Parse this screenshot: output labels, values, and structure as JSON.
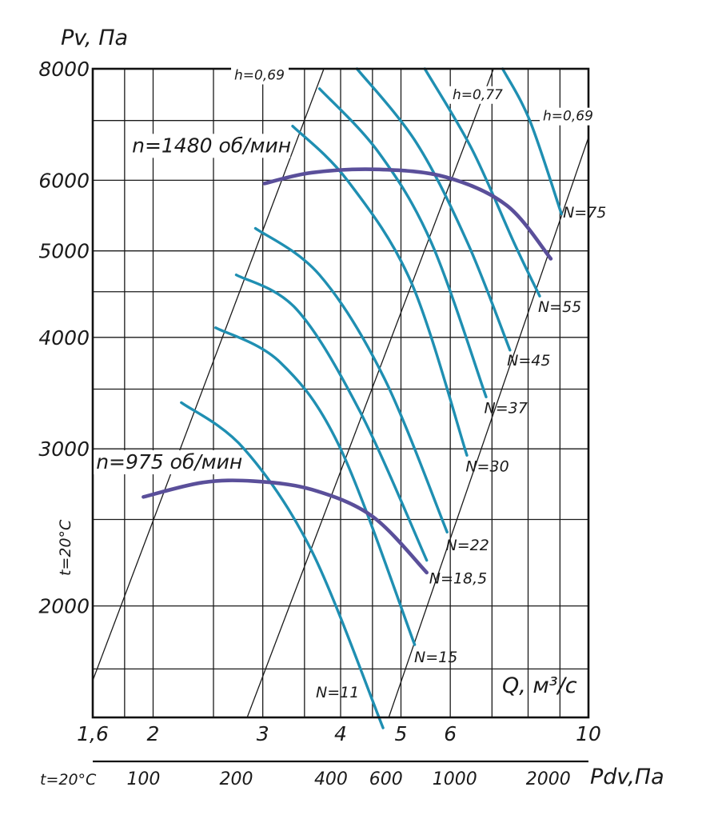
{
  "chart_data": {
    "type": "line",
    "title": "",
    "ylabel": "Pv, Па",
    "xlabel": "Q, м³/с",
    "x_scale": "log",
    "y_scale": "log",
    "xlim": [
      1.6,
      10
    ],
    "ylim": [
      1500,
      8000
    ],
    "y_ticks": [
      {
        "value": 2000,
        "label": "2000"
      },
      {
        "value": 3000,
        "label": "3000"
      },
      {
        "value": 4000,
        "label": "4000"
      },
      {
        "value": 5000,
        "label": "5000"
      },
      {
        "value": 6000,
        "label": "6000"
      },
      {
        "value": 8000,
        "label": "8000"
      }
    ],
    "y_minor_grid": [
      1700,
      2500,
      3500,
      4500,
      7000
    ],
    "x_ticks": [
      {
        "value": 1.6,
        "label": "1,6"
      },
      {
        "value": 2,
        "label": "2"
      },
      {
        "value": 3,
        "label": "3"
      },
      {
        "value": 4,
        "label": "4"
      },
      {
        "value": 5,
        "label": "5"
      },
      {
        "value": 6,
        "label": "6"
      },
      {
        "value": 10,
        "label": "10"
      }
    ],
    "x_minor_grid": [
      1.8,
      2.5,
      3.5,
      4.5,
      7,
      8,
      9
    ],
    "y_side_label": "t=20°C",
    "pdv_axis": {
      "label": "Pdv,Па",
      "temp_label": "t=20°C",
      "ticks": [
        {
          "label": "100",
          "q": 1.93
        },
        {
          "label": "200",
          "q": 2.72
        },
        {
          "label": "400",
          "q": 3.86
        },
        {
          "label": "600",
          "q": 4.73
        },
        {
          "label": "1000",
          "q": 6.1
        },
        {
          "label": "2000",
          "q": 8.62
        }
      ]
    },
    "efficiency_lines": [
      {
        "label": "h=0,69",
        "points": [
          [
            1.6,
            1650
          ],
          [
            3.02,
            6000
          ],
          [
            3.76,
            8000
          ]
        ]
      },
      {
        "label": "h=0,77",
        "points": [
          [
            2.78,
            1450
          ],
          [
            4.58,
            3800
          ],
          [
            7.04,
            8000
          ]
        ]
      },
      {
        "label": "h=0,69",
        "points": [
          [
            4.7,
            1450
          ],
          [
            6.3,
            2700
          ],
          [
            10.0,
            6700
          ]
        ]
      }
    ],
    "efficiency_labels": [
      {
        "text": "h=0,69",
        "q": 2.7,
        "pv": 7780
      },
      {
        "text": "h=0,77",
        "q": 6.05,
        "pv": 7400
      },
      {
        "text": "h=0,69",
        "q": 8.45,
        "pv": 7000
      }
    ],
    "series": [
      {
        "name": "n=1480 об/мин",
        "kind": "speed",
        "points": [
          [
            3.02,
            5950
          ],
          [
            3.6,
            6120
          ],
          [
            4.6,
            6170
          ],
          [
            5.9,
            6050
          ],
          [
            7.4,
            5620
          ],
          [
            8.7,
            4900
          ]
        ],
        "label_at": [
          1.85,
          6450
        ]
      },
      {
        "name": "n=975 об/мин",
        "kind": "speed",
        "points": [
          [
            1.93,
            2650
          ],
          [
            2.4,
            2750
          ],
          [
            2.9,
            2760
          ],
          [
            3.6,
            2700
          ],
          [
            4.5,
            2520
          ],
          [
            5.5,
            2180
          ]
        ],
        "label_at": [
          1.62,
          2850
        ]
      },
      {
        "name": "N=75",
        "kind": "power",
        "points": [
          [
            7.28,
            8000
          ],
          [
            8.05,
            7000
          ],
          [
            9.05,
            5500
          ]
        ],
        "label_at": [
          9.1,
          5450
        ]
      },
      {
        "name": "N=55",
        "kind": "power",
        "points": [
          [
            5.46,
            8000
          ],
          [
            6.5,
            6500
          ],
          [
            7.6,
            5100
          ],
          [
            8.35,
            4450
          ]
        ],
        "label_at": [
          8.3,
          4270
        ]
      },
      {
        "name": "N=45",
        "kind": "power",
        "points": [
          [
            4.25,
            8000
          ],
          [
            5.3,
            6600
          ],
          [
            6.4,
            5100
          ],
          [
            7.48,
            3870
          ]
        ],
        "label_at": [
          7.4,
          3720
        ]
      },
      {
        "name": "N=37",
        "kind": "power",
        "points": [
          [
            3.7,
            7600
          ],
          [
            4.6,
            6450
          ],
          [
            5.6,
            5100
          ],
          [
            6.85,
            3430
          ]
        ],
        "label_at": [
          6.8,
          3290
        ]
      },
      {
        "name": "N=30",
        "kind": "power",
        "points": [
          [
            3.35,
            6900
          ],
          [
            4.1,
            6000
          ],
          [
            5.2,
            4600
          ],
          [
            6.38,
            2950
          ]
        ],
        "label_at": [
          6.35,
          2830
        ]
      },
      {
        "name": "N=22",
        "kind": "power",
        "points": [
          [
            2.92,
            5300
          ],
          [
            3.7,
            4700
          ],
          [
            4.7,
            3600
          ],
          [
            5.93,
            2420
          ]
        ],
        "label_at": [
          5.9,
          2310
        ]
      },
      {
        "name": "N=18,5",
        "kind": "power",
        "points": [
          [
            2.72,
            4700
          ],
          [
            3.4,
            4300
          ],
          [
            4.3,
            3300
          ],
          [
            5.5,
            2250
          ]
        ],
        "label_at": [
          5.55,
          2120
        ]
      },
      {
        "name": "N=15",
        "kind": "power",
        "points": [
          [
            2.52,
            4100
          ],
          [
            3.2,
            3750
          ],
          [
            4.0,
            3000
          ],
          [
            5.26,
            1810
          ]
        ],
        "label_at": [
          5.25,
          1730
        ]
      },
      {
        "name": "N=11",
        "kind": "power",
        "points": [
          [
            2.22,
            3380
          ],
          [
            2.8,
            3000
          ],
          [
            3.6,
            2300
          ],
          [
            4.68,
            1460
          ]
        ],
        "label_at": [
          3.65,
          1580
        ]
      }
    ]
  }
}
